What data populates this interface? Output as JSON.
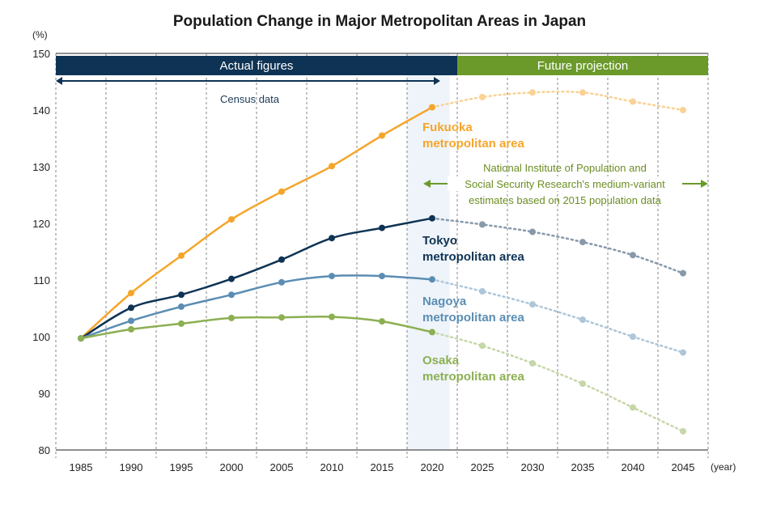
{
  "chart_data": {
    "type": "line",
    "title": "Population Change in Major Metropolitan Areas in Japan",
    "y_unit": "(%)",
    "x_unit": "(year)",
    "ylim": [
      80,
      150
    ],
    "y_ticks": [
      "80",
      "90",
      "100",
      "110",
      "120",
      "130",
      "140",
      "150"
    ],
    "categories": [
      "1985",
      "1990",
      "1995",
      "2000",
      "2005",
      "2010",
      "2015",
      "2020",
      "2025",
      "2030",
      "2035",
      "2040",
      "2045"
    ],
    "actual_range": [
      "1985",
      "2020"
    ],
    "projection_range": [
      "2020",
      "2045"
    ],
    "bands": {
      "actual": {
        "label": "Actual figures",
        "color": "#0e3354"
      },
      "projection": {
        "label": "Future projection",
        "color": "#6b9a2a"
      }
    },
    "census_label": "Census data",
    "projection_note": [
      "National Institute of Population and",
      "Social Security Research's medium-variant",
      "estimates based on 2015 population data"
    ],
    "highlight_category": "2020",
    "series": [
      {
        "name": "Fukuoka metropolitan area",
        "label_lines": [
          "Fukuoka",
          "metropolitan area"
        ],
        "color": "#f5a52b",
        "values": [
          99.7,
          107.7,
          114.3,
          120.7,
          125.6,
          130.1,
          135.5,
          140.5,
          142.3,
          143.1,
          143.1,
          141.5,
          140.0
        ]
      },
      {
        "name": "Tokyo metropolitan area",
        "label_lines": [
          "Tokyo",
          "metropolitan area"
        ],
        "color": "#0e3354",
        "values": [
          99.7,
          105.1,
          107.4,
          110.2,
          113.6,
          117.4,
          119.2,
          120.9,
          119.8,
          118.5,
          116.7,
          114.4,
          111.2
        ]
      },
      {
        "name": "Nagoya metropolitan area",
        "label_lines": [
          "Nagoya",
          "metropolitan area"
        ],
        "color": "#5b8db3",
        "values": [
          99.7,
          102.8,
          105.3,
          107.4,
          109.6,
          110.7,
          110.7,
          110.1,
          108.0,
          105.7,
          103.0,
          100.0,
          97.2
        ]
      },
      {
        "name": "Osaka metropolitan area",
        "label_lines": [
          "Osaka",
          "metropolitan area"
        ],
        "color": "#8caf52",
        "values": [
          99.7,
          101.3,
          102.3,
          103.3,
          103.4,
          103.5,
          102.7,
          100.8,
          98.4,
          95.3,
          91.7,
          87.5,
          83.3
        ]
      }
    ]
  }
}
